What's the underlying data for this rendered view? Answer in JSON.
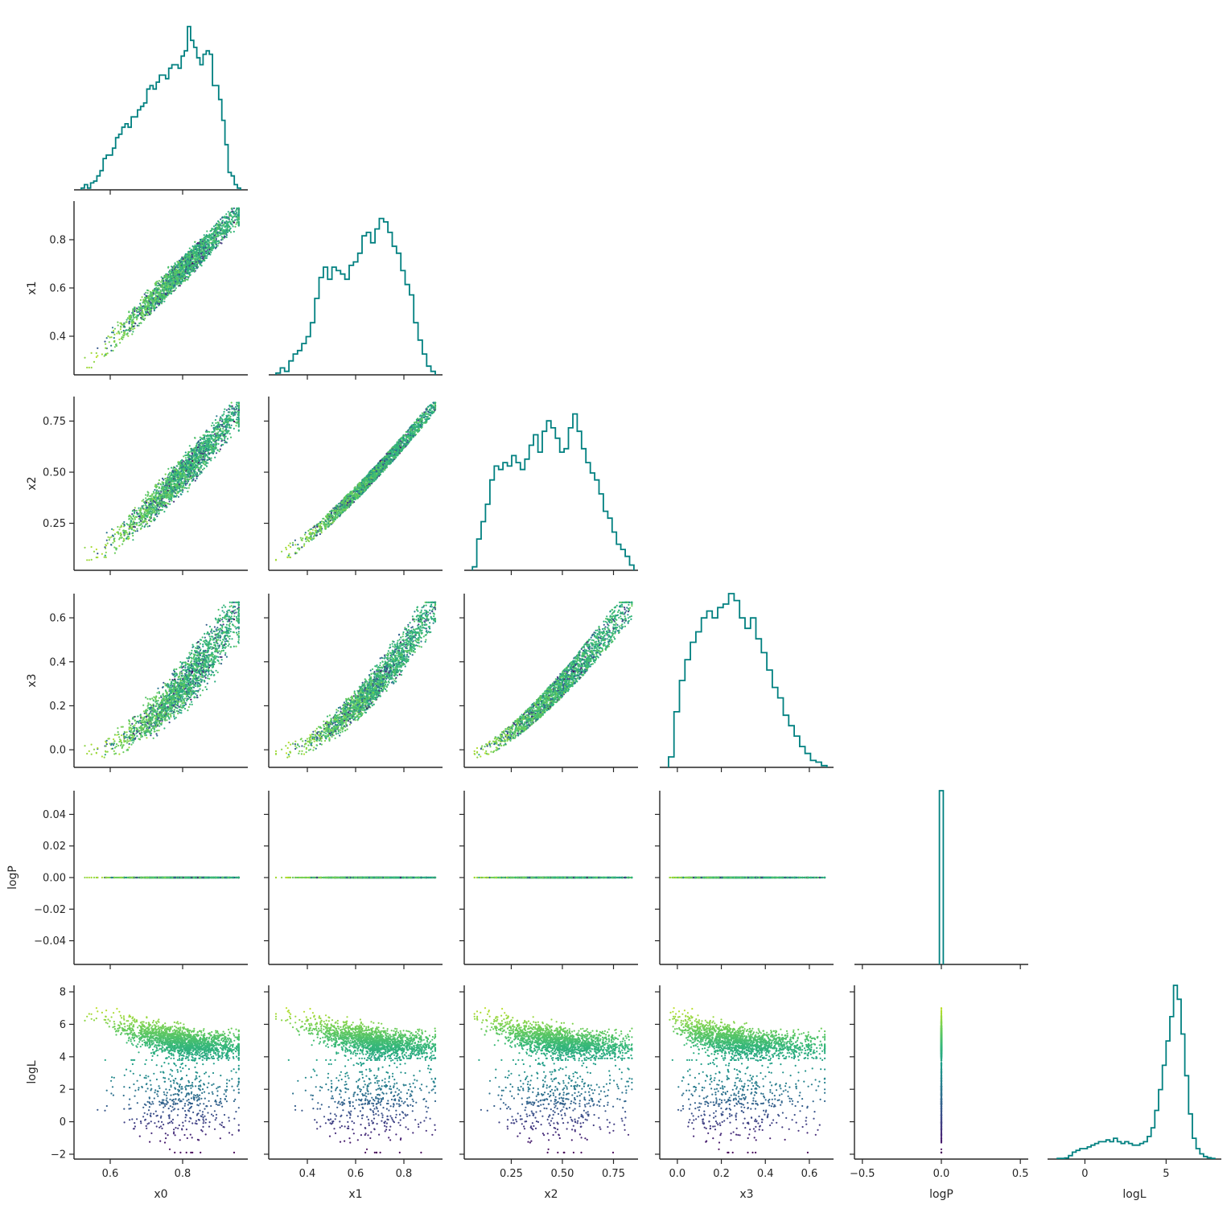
{
  "chart_data": {
    "type": "corner-plot",
    "variables": [
      "x0",
      "x1",
      "x2",
      "x3",
      "logP",
      "logL"
    ],
    "colormap": "viridis",
    "color_variable": "logL",
    "hist_color": "#008080",
    "ranges": {
      "x0": [
        0.5,
        0.98
      ],
      "x1": [
        0.24,
        0.96
      ],
      "x2": [
        0.02,
        0.87
      ],
      "x3": [
        -0.08,
        0.71
      ],
      "logP": [
        -0.055,
        0.055
      ],
      "logL": [
        -2.3,
        8.4
      ]
    },
    "ticks": {
      "x0": {
        "values": [
          0.6,
          0.8
        ],
        "labels": [
          "0.6",
          "0.8"
        ]
      },
      "x1": {
        "values": [
          0.4,
          0.6,
          0.8
        ],
        "labels": [
          "0.4",
          "0.6",
          "0.8"
        ]
      },
      "x2": {
        "values": [
          0.25,
          0.5,
          0.75
        ],
        "labels": [
          "0.25",
          "0.50",
          "0.75"
        ]
      },
      "x3": {
        "values": [
          0.0,
          0.2,
          0.4,
          0.6
        ],
        "labels": [
          "0.0",
          "0.2",
          "0.4",
          "0.6"
        ]
      },
      "logP_y": {
        "values": [
          0.04,
          0.02,
          0.0,
          -0.02,
          -0.04
        ],
        "labels": [
          "0.04",
          "0.02",
          "0.00",
          "−0.02",
          "−0.04"
        ]
      },
      "logP_x": {
        "values": [
          -0.5,
          0.0,
          0.5
        ],
        "labels": [
          "−0.5",
          "0.0",
          "0.5"
        ],
        "range": [
          -0.55,
          0.55
        ]
      },
      "logL_y": {
        "values": [
          8,
          6,
          4,
          2,
          0,
          -2
        ],
        "labels": [
          "8",
          "6",
          "4",
          "2",
          "0",
          "−2"
        ]
      },
      "logL_x": {
        "values": [
          0,
          5
        ],
        "labels": [
          "0",
          "5"
        ],
        "range": [
          -2.3,
          8.4
        ]
      }
    },
    "histograms": {
      "x0": {
        "lo": 0.52,
        "hi": 0.96,
        "counts": [
          0.01,
          0.03,
          0.01,
          0.04,
          0.05,
          0.08,
          0.11,
          0.18,
          0.2,
          0.2,
          0.24,
          0.3,
          0.32,
          0.36,
          0.38,
          0.36,
          0.42,
          0.42,
          0.46,
          0.48,
          0.5,
          0.58,
          0.6,
          0.58,
          0.62,
          0.66,
          0.66,
          0.64,
          0.7,
          0.72,
          0.72,
          0.7,
          0.77,
          0.8,
          0.94,
          0.86,
          0.82,
          0.76,
          0.72,
          0.78,
          0.8,
          0.78,
          0.6,
          0.6,
          0.52,
          0.4,
          0.26,
          0.1,
          0.08,
          0.03,
          0.01
        ]
      },
      "x1": {
        "lo": 0.27,
        "hi": 0.93,
        "counts": [
          0.01,
          0.04,
          0.02,
          0.08,
          0.12,
          0.14,
          0.18,
          0.22,
          0.3,
          0.44,
          0.56,
          0.62,
          0.55,
          0.62,
          0.6,
          0.58,
          0.55,
          0.63,
          0.65,
          0.7,
          0.8,
          0.82,
          0.76,
          0.84,
          0.9,
          0.88,
          0.82,
          0.74,
          0.7,
          0.6,
          0.52,
          0.46,
          0.3,
          0.2,
          0.12,
          0.05,
          0.02
        ]
      },
      "x2": {
        "lo": 0.06,
        "hi": 0.85,
        "counts": [
          0.02,
          0.18,
          0.28,
          0.38,
          0.52,
          0.6,
          0.58,
          0.62,
          0.6,
          0.66,
          0.62,
          0.58,
          0.64,
          0.72,
          0.78,
          0.68,
          0.8,
          0.86,
          0.82,
          0.76,
          0.68,
          0.7,
          0.82,
          0.9,
          0.8,
          0.7,
          0.62,
          0.56,
          0.52,
          0.44,
          0.34,
          0.3,
          0.22,
          0.15,
          0.12,
          0.08,
          0.03
        ]
      },
      "x3": {
        "lo": -0.04,
        "hi": 0.68,
        "counts": [
          0.06,
          0.32,
          0.5,
          0.62,
          0.72,
          0.78,
          0.86,
          0.9,
          0.86,
          0.92,
          0.94,
          1.0,
          0.96,
          0.86,
          0.8,
          0.86,
          0.74,
          0.66,
          0.56,
          0.46,
          0.4,
          0.3,
          0.24,
          0.18,
          0.12,
          0.08,
          0.04,
          0.03,
          0.01
        ]
      },
      "logP": {
        "lo": -0.012,
        "hi": 0.012,
        "counts": [
          1.0
        ]
      },
      "logL": {
        "lo": -1.7,
        "hi": 8.0,
        "counts": [
          0.004,
          0.004,
          0.006,
          0.02,
          0.04,
          0.05,
          0.06,
          0.06,
          0.07,
          0.08,
          0.09,
          0.1,
          0.1,
          0.11,
          0.1,
          0.12,
          0.1,
          0.09,
          0.1,
          0.09,
          0.08,
          0.08,
          0.09,
          0.1,
          0.13,
          0.18,
          0.28,
          0.4,
          0.54,
          0.68,
          0.82,
          1.0,
          0.92,
          0.72,
          0.48,
          0.26,
          0.12,
          0.06,
          0.03,
          0.015,
          0.008,
          0.004
        ]
      }
    }
  }
}
